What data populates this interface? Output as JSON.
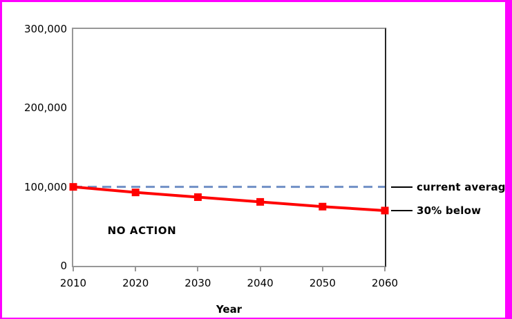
{
  "colors": {
    "frame_border": "#FF00FF",
    "series_red": "#FF0000",
    "reference_blue": "#6F8FC5",
    "axis_gray": "#979797",
    "plot_right_border": "#262626",
    "text": "#000000"
  },
  "chart_data": {
    "type": "line",
    "title": "",
    "xlabel": "Year",
    "ylabel": "",
    "x": [
      2010,
      2020,
      2030,
      2040,
      2050,
      2060
    ],
    "xtick_labels": [
      "2010",
      "2020",
      "2030",
      "2040",
      "2050",
      "2060"
    ],
    "xlim": [
      2010,
      2060
    ],
    "ylim": [
      0,
      300000
    ],
    "yticks": [
      0,
      100000,
      200000,
      300000
    ],
    "ytick_labels": [
      "0",
      "100,000",
      "200,000",
      "300,000"
    ],
    "grid": false,
    "legend_position": "none",
    "series": [
      {
        "name": "NO ACTION",
        "values": [
          100000,
          93000,
          87000,
          81000,
          75000,
          70000
        ],
        "color": "#FF0000",
        "marker": "square",
        "callout_label": "30% below"
      }
    ],
    "reference_line": {
      "label": "current average",
      "value": 100000,
      "color": "#6F8FC5",
      "style": "dashed"
    },
    "annotations": [
      {
        "text": "NO ACTION",
        "x": 2015.5,
        "y": 45000
      }
    ]
  }
}
